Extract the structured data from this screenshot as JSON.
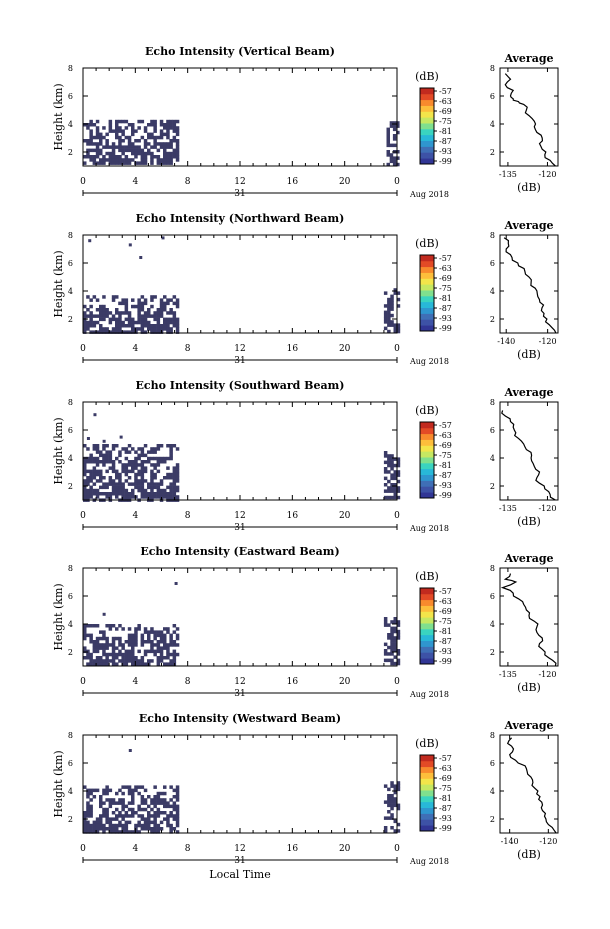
{
  "figure": {
    "xlabel": "Local Time",
    "day_label": "31",
    "month_label": "Aug 2018",
    "x_ticks": [
      "0",
      "4",
      "8",
      "12",
      "16",
      "20",
      "0"
    ],
    "colorbar_unit": "(dB)",
    "colorbar_ticks": [
      "-57",
      "-63",
      "-69",
      "-75",
      "-81",
      "-87",
      "-93",
      "-99"
    ],
    "colorbar_colors": [
      "#313695",
      "#3d52a6",
      "#3f6fb6",
      "#2f96cf",
      "#28b8d8",
      "#3ad4c0",
      "#7fe08e",
      "#c6e862",
      "#f3e54a",
      "#fdbe3b",
      "#f88a2d",
      "#e34a26",
      "#c22a1f"
    ],
    "avg_title": "Average",
    "avg_xlabel": "(dB)",
    "echo_color": "#3b3b66"
  },
  "chart_data": [
    {
      "type": "heatmap",
      "title": "Echo Intensity (Vertical Beam)",
      "ylabel": "Height (km)",
      "xlim": [
        0,
        24
      ],
      "ylim": [
        1,
        8
      ],
      "y_ticks": [
        "2",
        "4",
        "6",
        "8"
      ],
      "echo": {
        "blocks": [
          [
            0,
            7.2,
            1.2,
            4.3
          ],
          [
            23.2,
            24,
            1.1,
            4.2
          ]
        ],
        "sparse": []
      },
      "average_profile": {
        "x_ticks": [
          "-135",
          "-120"
        ],
        "xlim": [
          -138,
          -116
        ],
        "height": [
          1.0,
          1.4,
          1.8,
          2.2,
          2.6,
          3.0,
          3.4,
          3.8,
          4.2,
          4.6,
          5.0,
          5.4,
          5.6,
          5.8,
          6.0,
          6.4,
          6.8,
          7.2,
          7.6
        ],
        "db": [
          -117,
          -119,
          -121,
          -122,
          -123,
          -122,
          -124,
          -125,
          -125,
          -127,
          -128,
          -129,
          -131,
          -133,
          -134,
          -133,
          -136,
          -134,
          -136
        ]
      }
    },
    {
      "type": "heatmap",
      "title": "Echo Intensity (Northward Beam)",
      "ylabel": "Height (km)",
      "xlim": [
        0,
        24
      ],
      "ylim": [
        1,
        8
      ],
      "y_ticks": [
        "2",
        "4",
        "6",
        "8"
      ],
      "echo": {
        "blocks": [
          [
            0,
            7.2,
            1.1,
            3.7
          ],
          [
            23.0,
            24,
            1.1,
            4.2
          ]
        ],
        "sparse": [
          [
            0.4,
            7.7
          ],
          [
            3.5,
            7.4
          ],
          [
            6.0,
            7.9
          ],
          [
            4.3,
            6.5
          ]
        ]
      },
      "average_profile": {
        "x_ticks": [
          "-140",
          "-120"
        ],
        "xlim": [
          -143,
          -115
        ],
        "height": [
          1.0,
          1.4,
          1.8,
          2.2,
          2.6,
          3.0,
          3.4,
          3.8,
          4.2,
          4.6,
          5.0,
          5.4,
          5.8,
          6.2,
          6.6,
          7.0,
          7.4,
          7.8
        ],
        "db": [
          -116,
          -118,
          -121,
          -122,
          -123,
          -122,
          -124,
          -125,
          -126,
          -128,
          -129,
          -131,
          -134,
          -137,
          -138,
          -140,
          -139,
          -141
        ]
      }
    },
    {
      "type": "heatmap",
      "title": "Echo Intensity (Southward Beam)",
      "ylabel": "Height (km)",
      "xlim": [
        0,
        24
      ],
      "ylim": [
        1,
        8
      ],
      "y_ticks": [
        "2",
        "4",
        "6",
        "8"
      ],
      "echo": {
        "blocks": [
          [
            0,
            7.2,
            1.1,
            5.0
          ],
          [
            23.0,
            24,
            1.3,
            4.5
          ]
        ],
        "sparse": [
          [
            0.8,
            7.2
          ],
          [
            0.3,
            5.5
          ],
          [
            1.5,
            5.3
          ],
          [
            2.8,
            5.6
          ]
        ]
      },
      "average_profile": {
        "x_ticks": [
          "-135",
          "-120"
        ],
        "xlim": [
          -138,
          -116
        ],
        "height": [
          1.0,
          1.4,
          1.8,
          2.2,
          2.6,
          3.0,
          3.4,
          3.8,
          4.2,
          4.6,
          5.0,
          5.4,
          5.8,
          6.2,
          6.6,
          7.0,
          7.4
        ],
        "db": [
          -117,
          -119,
          -121,
          -123,
          -124,
          -123,
          -125,
          -126,
          -126,
          -128,
          -129,
          -131,
          -132,
          -133,
          -134,
          -136,
          -137
        ]
      }
    },
    {
      "type": "heatmap",
      "title": "Echo Intensity (Eastward Beam)",
      "ylabel": "Height (km)",
      "xlim": [
        0,
        24
      ],
      "ylim": [
        1,
        8
      ],
      "y_ticks": [
        "2",
        "4",
        "6",
        "8"
      ],
      "echo": {
        "blocks": [
          [
            0,
            7.2,
            1.1,
            4.0
          ],
          [
            23.0,
            24,
            1.1,
            4.5
          ]
        ],
        "sparse": [
          [
            7.0,
            7.0
          ],
          [
            1.5,
            4.8
          ]
        ]
      },
      "average_profile": {
        "x_ticks": [
          "-135",
          "-120"
        ],
        "xlim": [
          -138,
          -116
        ],
        "height": [
          1.0,
          1.4,
          1.8,
          2.2,
          2.6,
          3.0,
          3.4,
          3.8,
          4.2,
          4.6,
          5.0,
          5.4,
          5.8,
          6.2,
          6.6,
          7.0,
          7.2,
          7.6
        ],
        "db": [
          -117,
          -118,
          -121,
          -122,
          -123,
          -122,
          -124,
          -124,
          -125,
          -127,
          -128,
          -129,
          -131,
          -133,
          -137,
          -132,
          -136,
          -134
        ]
      }
    },
    {
      "type": "heatmap",
      "title": "Echo Intensity (Westward Beam)",
      "ylabel": "Height (km)",
      "xlim": [
        0,
        24
      ],
      "ylim": [
        1,
        8
      ],
      "y_ticks": [
        "2",
        "4",
        "6",
        "8"
      ],
      "echo": {
        "blocks": [
          [
            0,
            7.2,
            1.1,
            4.4
          ],
          [
            23.0,
            24,
            1.2,
            4.7
          ]
        ],
        "sparse": [
          [
            3.5,
            7.0
          ]
        ]
      },
      "average_profile": {
        "x_ticks": [
          "-140",
          "-120"
        ],
        "xlim": [
          -145,
          -115
        ],
        "height": [
          1.0,
          1.4,
          1.8,
          2.2,
          2.6,
          3.0,
          3.4,
          3.8,
          4.2,
          4.6,
          5.0,
          5.4,
          5.8,
          6.2,
          6.6,
          7.0,
          7.4,
          7.8
        ],
        "db": [
          -116,
          -118,
          -121,
          -122,
          -123,
          -123,
          -125,
          -126,
          -127,
          -128,
          -129,
          -131,
          -132,
          -137,
          -140,
          -138,
          -141,
          -139
        ]
      }
    }
  ]
}
